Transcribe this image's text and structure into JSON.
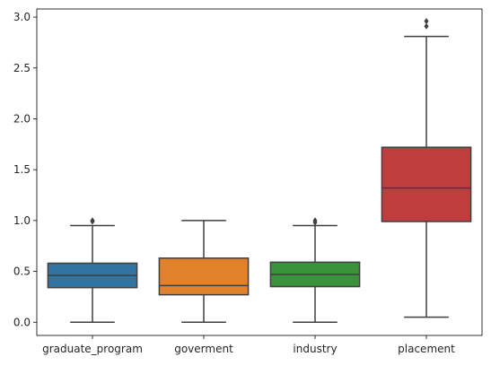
{
  "chart_data": {
    "type": "box",
    "title": "",
    "xlabel": "",
    "ylabel": "",
    "ylim": [
      -0.13,
      3.08
    ],
    "yticks": [
      "0.0",
      "0.5",
      "1.0",
      "1.5",
      "2.0",
      "2.5",
      "3.0"
    ],
    "ytick_values": [
      0.0,
      0.5,
      1.0,
      1.5,
      2.0,
      2.5,
      3.0
    ],
    "grid": false,
    "categories": [
      "graduate_program",
      "goverment",
      "industry",
      "placement"
    ],
    "boxes": [
      {
        "category": "graduate_program",
        "color": "#3274a1",
        "whisker_low": 0.0,
        "q1": 0.34,
        "median": 0.46,
        "q3": 0.58,
        "whisker_high": 0.95,
        "outliers": [
          0.99,
          1.0
        ]
      },
      {
        "category": "goverment",
        "color": "#e1812c",
        "whisker_low": 0.0,
        "q1": 0.27,
        "median": 0.36,
        "q3": 0.63,
        "whisker_high": 1.0,
        "outliers": []
      },
      {
        "category": "industry",
        "color": "#3a923a",
        "whisker_low": 0.0,
        "q1": 0.35,
        "median": 0.47,
        "q3": 0.59,
        "whisker_high": 0.95,
        "outliers": [
          0.98,
          1.0
        ]
      },
      {
        "category": "placement",
        "color": "#c03d3e",
        "whisker_low": 0.05,
        "q1": 0.99,
        "median": 1.32,
        "q3": 1.72,
        "whisker_high": 2.81,
        "outliers": [
          2.91,
          2.96
        ]
      }
    ],
    "line_color": "#3f3f3f"
  }
}
